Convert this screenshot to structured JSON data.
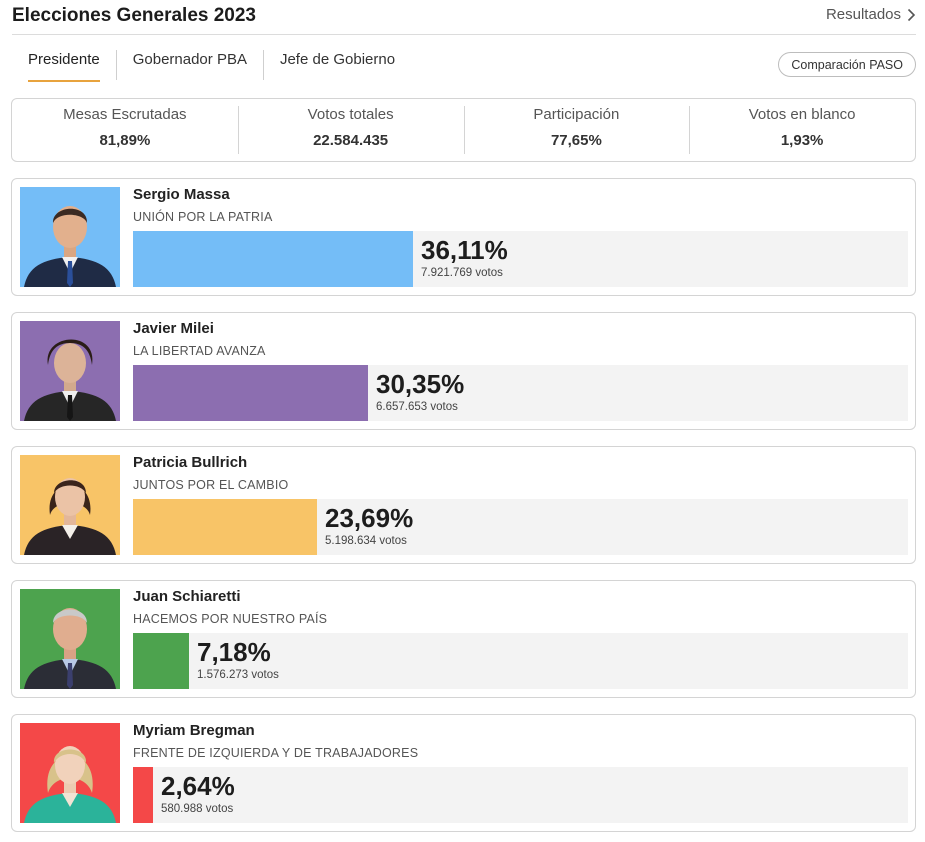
{
  "header": {
    "title": "Elecciones Generales 2023",
    "results_link": "Resultados"
  },
  "tabs": [
    {
      "label": "Presidente",
      "active": true
    },
    {
      "label": "Gobernador PBA",
      "active": false
    },
    {
      "label": "Jefe de Gobierno",
      "active": false
    }
  ],
  "paso_button": "Comparación PASO",
  "stats": [
    {
      "label": "Mesas Escrutadas",
      "value": "81,89%"
    },
    {
      "label": "Votos totales",
      "value": "22.584.435"
    },
    {
      "label": "Participación",
      "value": "77,65%"
    },
    {
      "label": "Votos en blanco",
      "value": "1,93%"
    }
  ],
  "candidates": [
    {
      "name": "Sergio Massa",
      "party": "UNIÓN POR LA PATRIA",
      "percent_label": "36,11%",
      "percent": 36.11,
      "votes": "7.921.769 votos",
      "color": "#74bdf7"
    },
    {
      "name": "Javier Milei",
      "party": "LA LIBERTAD AVANZA",
      "percent_label": "30,35%",
      "percent": 30.35,
      "votes": "6.657.653 votos",
      "color": "#8c6eb0"
    },
    {
      "name": "Patricia Bullrich",
      "party": "JUNTOS POR EL CAMBIO",
      "percent_label": "23,69%",
      "percent": 23.69,
      "votes": "5.198.634 votos",
      "color": "#f8c467"
    },
    {
      "name": "Juan Schiaretti",
      "party": "HACEMOS POR NUESTRO PAÍS",
      "percent_label": "7,18%",
      "percent": 7.18,
      "votes": "1.576.273 votos",
      "color": "#4da34e"
    },
    {
      "name": "Myriam Bregman",
      "party": "FRENTE DE IZQUIERDA Y DE TRABAJADORES",
      "percent_label": "2,64%",
      "percent": 2.64,
      "votes": "580.988 votos",
      "color": "#f44848"
    }
  ],
  "icons": {
    "results_link": "chevron-right-icon"
  }
}
